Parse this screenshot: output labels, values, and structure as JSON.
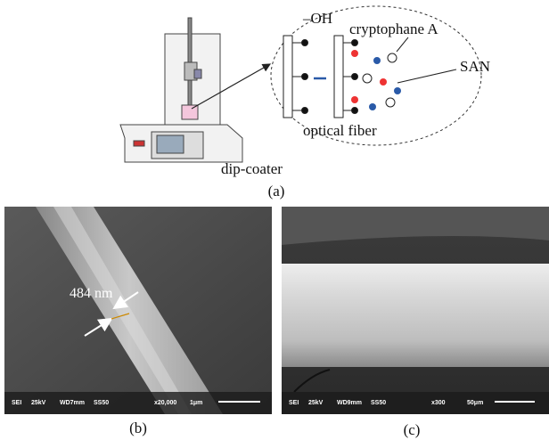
{
  "panel_a": {
    "labels": {
      "hydroxyl": "–OH",
      "receptor": "cryptophane A",
      "polymer": "SAN",
      "fiber": "optical fiber",
      "instrument": "dip-coater"
    },
    "caption": "(a)"
  },
  "panel_b": {
    "measurement": "484 nm",
    "info": [
      "SEI",
      "25kV",
      "WD7mm",
      "SS50",
      "x20,000",
      "1μm"
    ],
    "caption": "(b)"
  },
  "panel_c": {
    "info": [
      "SEI",
      "25kV",
      "WD9mm",
      "SS50",
      "x300",
      "50μm"
    ],
    "caption": "(c)"
  }
}
